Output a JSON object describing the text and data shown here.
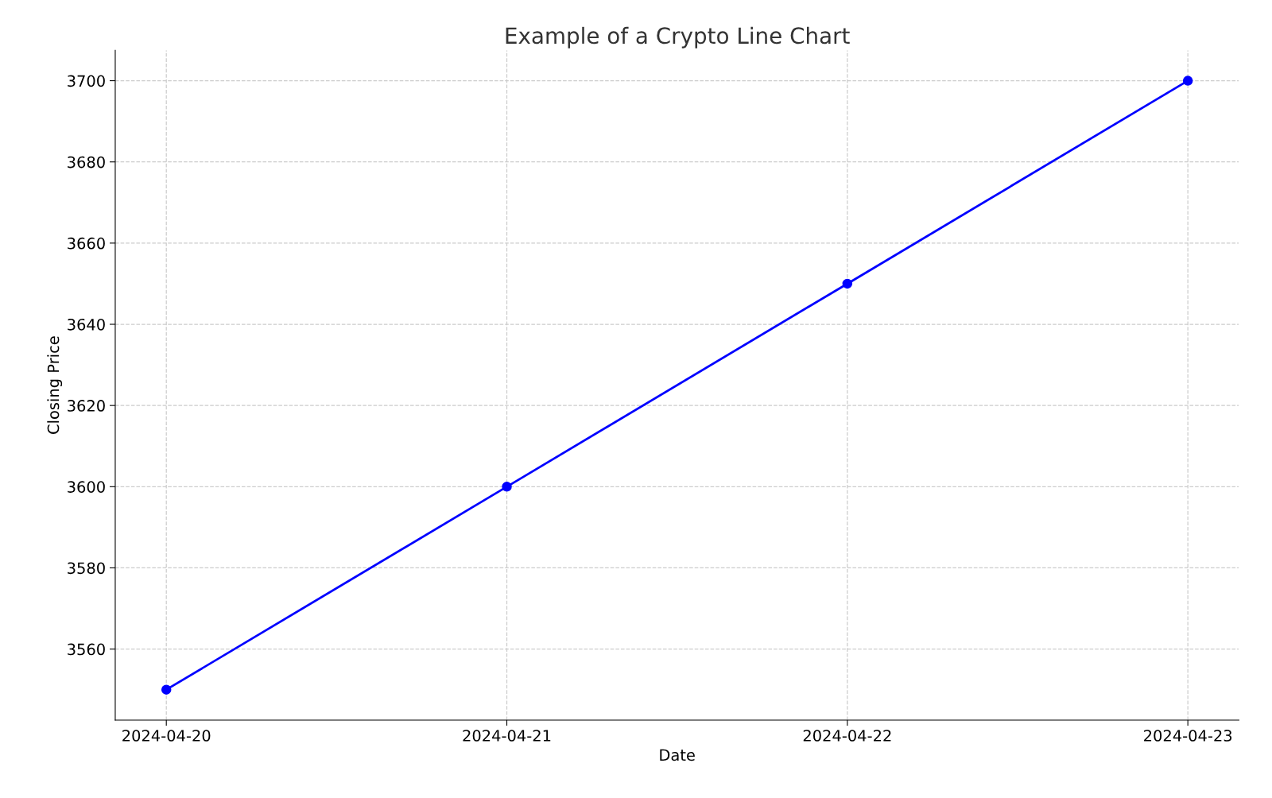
{
  "chart_data": {
    "type": "line",
    "title": "Example of a Crypto Line Chart",
    "xlabel": "Date",
    "ylabel": "Closing Price",
    "x": [
      "2024-04-20",
      "2024-04-21",
      "2024-04-22",
      "2024-04-23"
    ],
    "series": [
      {
        "color": "#0000ff",
        "values": [
          3550,
          3600,
          3650,
          3700
        ]
      }
    ],
    "xlim": [
      "2024-04-19T20:24",
      "2024-04-23T03:36"
    ],
    "xticks": [
      "2024-04-20",
      "2024-04-21",
      "2024-04-22",
      "2024-04-23"
    ],
    "ylim": [
      3542.5,
      3707.5
    ],
    "yticks": [
      3560,
      3580,
      3600,
      3620,
      3640,
      3660,
      3680,
      3700
    ],
    "grid": true,
    "marker": "circle",
    "line_style": "solid"
  }
}
